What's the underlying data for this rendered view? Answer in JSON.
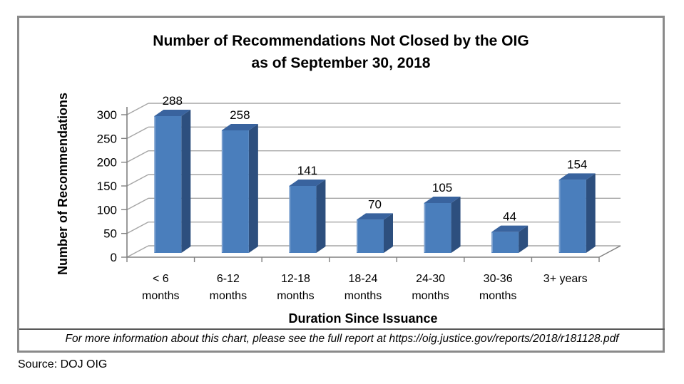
{
  "chart_data": {
    "type": "bar",
    "style": "3d-column",
    "title": "Number of Recommendations Not Closed by the OIG as of September 30, 2018",
    "title_line1": "Number of Recommendations Not Closed by the OIG",
    "title_line2": "as of September 30, 2018",
    "xlabel": "Duration Since Issuance",
    "ylabel": "Number of Recommendations",
    "categories": [
      "< 6\nmonths",
      "6-12\nmonths",
      "12-18\nmonths",
      "18-24\nmonths",
      "24-30\nmonths",
      "30-36\nmonths",
      "3+ years"
    ],
    "values": [
      288,
      258,
      141,
      70,
      105,
      44,
      154
    ],
    "ylim": [
      0,
      300
    ],
    "yticks": [
      0,
      50,
      100,
      150,
      200,
      250,
      300
    ],
    "grid": true,
    "legend": "none",
    "colors": {
      "bar_front": "#4a7ebc",
      "bar_side": "#2d4f7e",
      "bar_top": "#39639e",
      "bar_highlight": "#7fa3d0",
      "gridline": "#a6a6a6",
      "axis": "#808080",
      "frame_border": "#8a8a8a",
      "separator": "#595959",
      "text": "#000000"
    }
  },
  "footer": {
    "note": "For more information about this chart, please see the full report at https://oig.justice.gov/reports/2018/r181128.pdf"
  },
  "source": {
    "label": "Source: DOJ OIG"
  }
}
